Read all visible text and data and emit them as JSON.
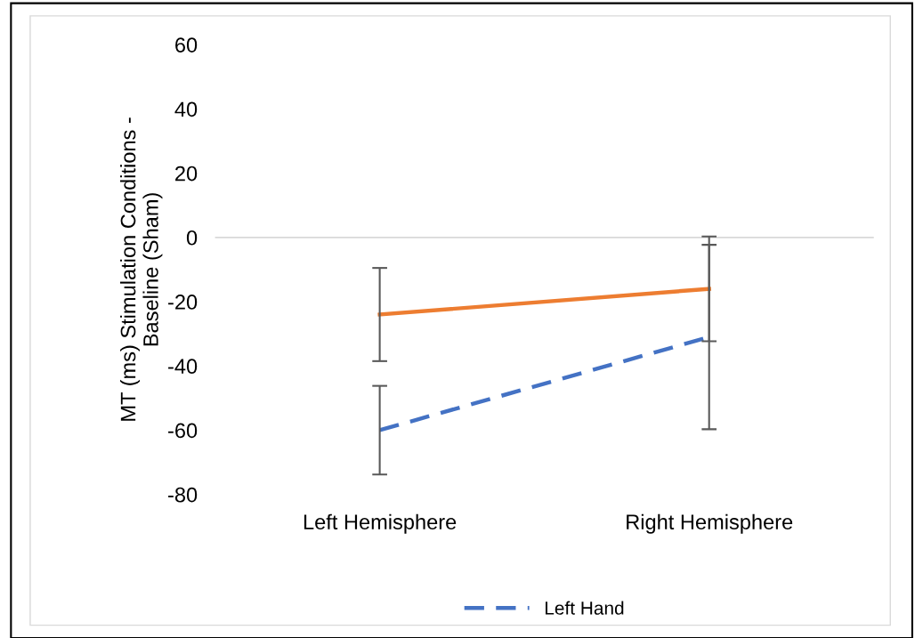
{
  "chart_data": {
    "type": "line",
    "ylabel": "MT (ms) Stimulation Conditions -\nBaseline (Sham)",
    "categories": [
      "Left Hemisphere",
      "Right Hemisphere"
    ],
    "series": [
      {
        "color": "#ed7d31",
        "values": [
          -24,
          -16
        ],
        "errors": [
          14.5,
          16.3
        ],
        "line_style": "solid"
      },
      {
        "name": "Left Hand",
        "color": "#4472c4",
        "values": [
          -60,
          -31
        ],
        "errors": [
          13.8,
          28.7
        ],
        "line_style": "dashed"
      }
    ],
    "ylim": [
      -80,
      60
    ],
    "yticks": [
      -80,
      -60,
      -40,
      -20,
      0,
      20,
      40,
      60
    ],
    "ref_lines": [
      {
        "axis": "y",
        "value": 0,
        "color": "#d9d9d9"
      }
    ],
    "grid": false,
    "legend": "bottom",
    "marker": "none"
  }
}
